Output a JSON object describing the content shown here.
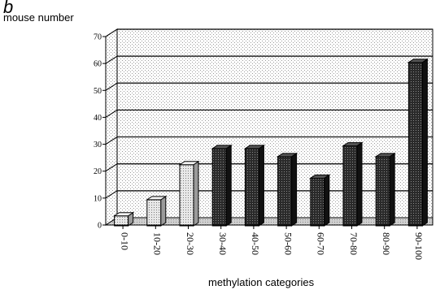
{
  "panel_letter": "b",
  "chart_data": {
    "type": "bar",
    "title": "",
    "ylabel": "mouse number",
    "xlabel": "methylation categories",
    "ylim": [
      0,
      70
    ],
    "yticks": [
      0,
      10,
      20,
      30,
      40,
      50,
      60,
      70
    ],
    "categories": [
      "0-10",
      "10-20",
      "20-30",
      "30-40",
      "40-50",
      "50-60",
      "60-70",
      "70-80",
      "80-90",
      "90-100"
    ],
    "values": [
      4,
      10,
      23,
      29,
      29,
      26,
      18,
      30,
      26,
      61
    ],
    "bar_colors": [
      "#cfcfcf",
      "#cfcfcf",
      "#cfcfcf",
      "#222222",
      "#222222",
      "#222222",
      "#222222",
      "#222222",
      "#222222",
      "#222222"
    ],
    "grid": true,
    "style": "3d"
  }
}
